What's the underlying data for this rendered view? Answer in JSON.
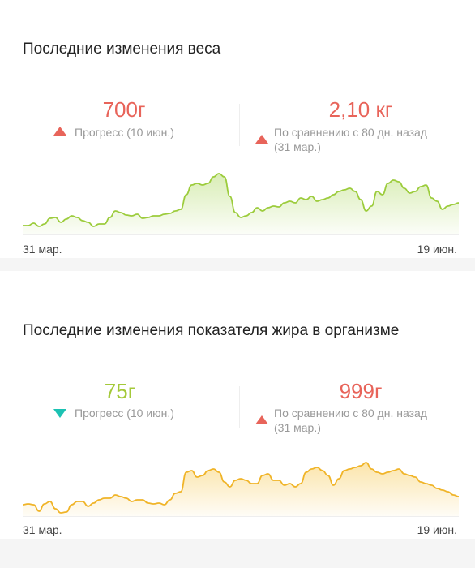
{
  "weight": {
    "title": "Последние изменения веса",
    "progress": {
      "value": "700г",
      "label": "Прогресс (10 июн.)",
      "direction": "up",
      "color": "#e8645a"
    },
    "comparison": {
      "value": "2,10 кг",
      "label_line1": "По сравнению с 80 дн. назад",
      "label_line2": "(31 мар.)",
      "direction": "up",
      "color": "#e8645a"
    },
    "axis_start": "31 мар.",
    "axis_end": "19 июн.",
    "line_color": "#9ccc3c",
    "fill_color": "#d7ecb2",
    "trend": [
      10,
      10,
      13,
      9,
      12,
      19,
      20,
      14,
      18,
      22,
      20,
      16,
      14,
      9,
      12,
      12,
      20,
      28,
      26,
      23,
      22,
      24,
      19,
      20,
      22,
      22,
      24,
      25,
      28,
      30,
      48,
      60,
      62,
      60,
      62,
      70,
      74,
      70,
      46,
      26,
      20,
      22,
      26,
      32,
      28,
      32,
      34,
      33,
      38,
      40,
      38,
      44,
      42,
      46,
      40,
      42,
      44,
      48,
      52,
      54,
      56,
      52,
      42,
      28,
      34,
      52,
      48,
      62,
      66,
      64,
      56,
      50,
      52,
      58,
      60,
      44,
      40,
      30,
      34,
      36,
      38
    ]
  },
  "fat": {
    "title": "Последние изменения показателя жира в организме",
    "progress": {
      "value": "75г",
      "label": "Прогресс (10 июн.)",
      "direction": "down",
      "color": "#a4c93a"
    },
    "comparison": {
      "value": "999г",
      "label_line1": "По сравнению с 80 дн. назад",
      "label_line2": "(31 мар.)",
      "direction": "up",
      "color": "#e8645a"
    },
    "axis_start": "31 мар.",
    "axis_end": "19 июн.",
    "line_color": "#f0b428",
    "fill_color": "#fbe3a6",
    "trend": [
      14,
      15,
      14,
      6,
      15,
      18,
      9,
      4,
      5,
      14,
      18,
      18,
      12,
      16,
      20,
      22,
      22,
      26,
      24,
      22,
      18,
      20,
      20,
      16,
      15,
      16,
      14,
      20,
      28,
      30,
      54,
      56,
      48,
      50,
      56,
      58,
      54,
      42,
      36,
      44,
      46,
      44,
      40,
      40,
      50,
      52,
      44,
      44,
      38,
      40,
      36,
      40,
      54,
      58,
      60,
      56,
      50,
      38,
      46,
      56,
      58,
      60,
      62,
      66,
      58,
      54,
      52,
      54,
      56,
      58,
      52,
      50,
      48,
      42,
      40,
      38,
      34,
      32,
      30,
      26,
      24
    ]
  }
}
